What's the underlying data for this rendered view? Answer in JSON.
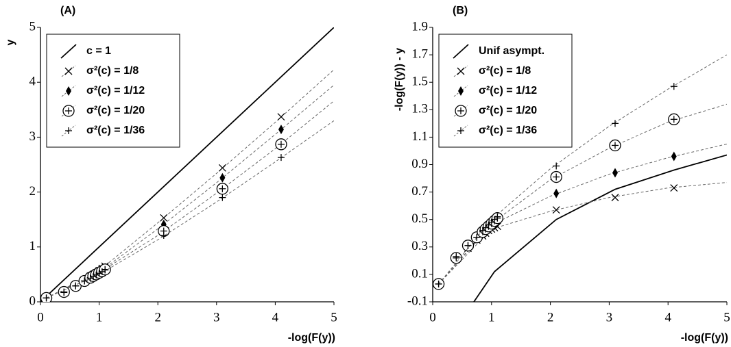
{
  "chart_data": [
    {
      "type": "scatter",
      "panel_label": "(A)",
      "x_label": "-log(F(y))",
      "y_label": "y",
      "xlim": [
        0,
        5
      ],
      "ylim": [
        0,
        5
      ],
      "xticks": [
        0,
        1,
        2,
        3,
        4,
        5
      ],
      "yticks": [
        0,
        1,
        2,
        3,
        4,
        5
      ],
      "legend": "upper-left",
      "series": [
        {
          "name": "c = 1",
          "color": "#000000",
          "x": [
            0,
            5
          ],
          "values": [
            0,
            5
          ]
        },
        {
          "name": "σ²(c) = 1/8",
          "color": "#000000",
          "marker": "cross",
          "x": [
            0.1,
            0.4,
            0.6,
            0.75,
            0.85,
            0.9,
            0.95,
            1.0,
            1.05,
            1.1,
            2.1,
            3.1,
            4.1
          ],
          "values": [
            0.07,
            0.19,
            0.31,
            0.4,
            0.47,
            0.5,
            0.53,
            0.57,
            0.61,
            0.65,
            1.53,
            2.44,
            3.37
          ],
          "line_x": [
            0.1,
            1,
            2,
            3,
            4,
            5
          ],
          "line_values": [
            0.07,
            0.57,
            1.44,
            2.34,
            3.27,
            4.23
          ]
        },
        {
          "name": "σ²(c) = 1/12",
          "color": "#000000",
          "marker": "diamond",
          "x": [
            0.1,
            0.4,
            0.6,
            0.75,
            0.85,
            0.9,
            0.95,
            1.0,
            1.05,
            1.1,
            2.1,
            3.1,
            4.1
          ],
          "values": [
            0.07,
            0.18,
            0.3,
            0.39,
            0.45,
            0.48,
            0.51,
            0.54,
            0.58,
            0.62,
            1.41,
            2.26,
            3.14
          ],
          "line_x": [
            0.1,
            1,
            2,
            3,
            4,
            5
          ],
          "line_values": [
            0.07,
            0.54,
            1.33,
            2.17,
            3.05,
            3.95
          ]
        },
        {
          "name": "σ²(c) = 1/20",
          "color": "#000000",
          "marker": "circle-plus",
          "x": [
            0.1,
            0.4,
            0.6,
            0.75,
            0.85,
            0.9,
            0.95,
            1.0,
            1.05,
            1.1,
            2.1,
            3.1,
            4.1
          ],
          "values": [
            0.07,
            0.18,
            0.29,
            0.38,
            0.44,
            0.47,
            0.5,
            0.53,
            0.56,
            0.59,
            1.29,
            2.06,
            2.87
          ],
          "line_x": [
            0.1,
            1,
            2,
            3,
            4,
            5
          ],
          "line_values": [
            0.07,
            0.53,
            1.21,
            1.98,
            2.79,
            3.66
          ]
        },
        {
          "name": "σ²(c) = 1/36",
          "color": "#000000",
          "marker": "plus",
          "x": [
            0.1,
            0.4,
            0.6,
            0.75,
            0.85,
            0.9,
            0.95,
            1.0,
            1.05,
            1.1,
            2.1,
            3.1,
            4.1
          ],
          "values": [
            0.07,
            0.17,
            0.29,
            0.38,
            0.43,
            0.46,
            0.49,
            0.52,
            0.55,
            0.58,
            1.21,
            1.9,
            2.63
          ],
          "line_x": [
            0.1,
            1,
            2,
            3,
            4,
            5
          ],
          "line_values": [
            0.07,
            0.5,
            1.13,
            1.82,
            2.55,
            3.3
          ]
        }
      ]
    },
    {
      "type": "scatter",
      "panel_label": "(B)",
      "x_label": "-log(F(y))",
      "y_label": "-log(F(y)) - y",
      "xlim": [
        0,
        5
      ],
      "ylim": [
        -0.1,
        1.9
      ],
      "xticks": [
        0,
        1,
        2,
        3,
        4,
        5
      ],
      "yticks": [
        -0.1,
        0.1,
        0.3,
        0.5,
        0.7,
        0.9,
        1.1,
        1.3,
        1.5,
        1.7,
        1.9
      ],
      "legend": "upper-left",
      "series": [
        {
          "name": "Unif asympt.",
          "color": "#000000",
          "x": [
            0.7,
            1.05,
            2.1,
            3.1,
            4.1,
            5
          ],
          "values": [
            -0.1,
            0.12,
            0.5,
            0.72,
            0.86,
            0.97
          ]
        },
        {
          "name": "σ²(c) = 1/8",
          "color": "#000000",
          "marker": "cross",
          "x": [
            0.1,
            0.4,
            0.6,
            0.75,
            0.85,
            0.9,
            0.95,
            1.0,
            1.05,
            1.1,
            2.1,
            3.1,
            4.1
          ],
          "values": [
            0.03,
            0.21,
            0.29,
            0.35,
            0.38,
            0.4,
            0.42,
            0.43,
            0.44,
            0.45,
            0.57,
            0.66,
            0.73
          ],
          "line_x": [
            0.1,
            1,
            2,
            3,
            4,
            5
          ],
          "line_values": [
            0.03,
            0.43,
            0.56,
            0.66,
            0.73,
            0.77
          ]
        },
        {
          "name": "σ²(c) = 1/12",
          "color": "#000000",
          "marker": "diamond",
          "x": [
            0.1,
            0.4,
            0.6,
            0.75,
            0.85,
            0.9,
            0.95,
            1.0,
            1.05,
            1.1,
            2.1,
            3.1,
            4.1
          ],
          "values": [
            0.03,
            0.22,
            0.3,
            0.36,
            0.4,
            0.42,
            0.44,
            0.46,
            0.47,
            0.48,
            0.69,
            0.84,
            0.96
          ],
          "line_x": [
            0.1,
            1,
            2,
            3,
            4,
            5
          ],
          "line_values": [
            0.03,
            0.46,
            0.67,
            0.83,
            0.95,
            1.05
          ]
        },
        {
          "name": "σ²(c) = 1/20",
          "color": "#000000",
          "marker": "circle-plus",
          "x": [
            0.1,
            0.4,
            0.6,
            0.75,
            0.85,
            0.9,
            0.95,
            1.0,
            1.05,
            1.1,
            2.1,
            3.1,
            4.1
          ],
          "values": [
            0.03,
            0.22,
            0.31,
            0.37,
            0.41,
            0.43,
            0.45,
            0.47,
            0.49,
            0.51,
            0.81,
            1.04,
            1.23
          ],
          "line_x": [
            0.1,
            1,
            2,
            3,
            4,
            5
          ],
          "line_values": [
            0.03,
            0.47,
            0.79,
            1.02,
            1.21,
            1.34
          ]
        },
        {
          "name": "σ²(c) = 1/36",
          "color": "#000000",
          "marker": "plus",
          "x": [
            0.1,
            0.4,
            0.6,
            0.75,
            0.85,
            0.9,
            0.95,
            1.0,
            1.05,
            1.1,
            2.1,
            3.1,
            4.1
          ],
          "values": [
            0.03,
            0.23,
            0.31,
            0.37,
            0.42,
            0.44,
            0.46,
            0.48,
            0.5,
            0.52,
            0.89,
            1.2,
            1.47
          ],
          "line_x": [
            0.1,
            1,
            2,
            3,
            4,
            5
          ],
          "line_values": [
            0.03,
            0.5,
            0.87,
            1.18,
            1.45,
            1.7
          ]
        }
      ]
    }
  ]
}
